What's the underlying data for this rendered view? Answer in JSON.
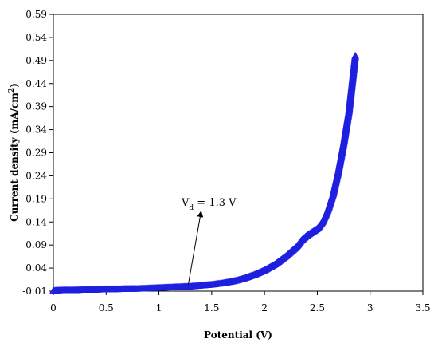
{
  "chart_data": {
    "type": "scatter",
    "title": "",
    "xlabel": "Potential (V)",
    "ylabel": {
      "main": "Current density (mA/cm",
      "sup": "2",
      "end": ")"
    },
    "xlim": [
      0,
      3.5
    ],
    "ylim": [
      -0.01,
      0.59
    ],
    "x_ticks": [
      0,
      0.5,
      1,
      1.5,
      2,
      2.5,
      3,
      3.5
    ],
    "x_tick_labels": [
      "0",
      "0.5",
      "1",
      "1.5",
      "2",
      "2.5",
      "3",
      "3.5"
    ],
    "y_ticks": [
      -0.01,
      0.04,
      0.09,
      0.14,
      0.19,
      0.24,
      0.29,
      0.34,
      0.39,
      0.44,
      0.49,
      0.54,
      0.59
    ],
    "y_tick_labels": [
      "-0.01",
      "0.04",
      "0.09",
      "0.14",
      "0.19",
      "0.24",
      "0.29",
      "0.34",
      "0.39",
      "0.44",
      "0.49",
      "0.54",
      "0.59"
    ],
    "grid": false,
    "legend": "none",
    "marker": "triangle-open",
    "series_color": "#1f1fe0",
    "series": [
      {
        "x": [
          0,
          0.1,
          0.2,
          0.3,
          0.4,
          0.5,
          0.6,
          0.7,
          0.8,
          0.9,
          1.0,
          1.1,
          1.2,
          1.3,
          1.4,
          1.5,
          1.6,
          1.7,
          1.8,
          1.9,
          2.0,
          2.1,
          2.2,
          2.3,
          2.35,
          2.4,
          2.5,
          2.55,
          2.6,
          2.65,
          2.7,
          2.75,
          2.8,
          2.83,
          2.86
        ],
        "y": [
          -0.009,
          -0.008,
          -0.008,
          -0.007,
          -0.007,
          -0.006,
          -0.006,
          -0.005,
          -0.005,
          -0.004,
          -0.003,
          -0.002,
          -0.001,
          0.0,
          0.002,
          0.004,
          0.007,
          0.011,
          0.017,
          0.025,
          0.035,
          0.048,
          0.065,
          0.085,
          0.1,
          0.11,
          0.125,
          0.14,
          0.165,
          0.2,
          0.25,
          0.31,
          0.38,
          0.44,
          0.5
        ]
      }
    ],
    "annotation": {
      "label_main": "V",
      "label_sub": "d",
      "label_rest": " = 1.3 V",
      "arrow_to": [
        1.3,
        0.0
      ]
    }
  }
}
